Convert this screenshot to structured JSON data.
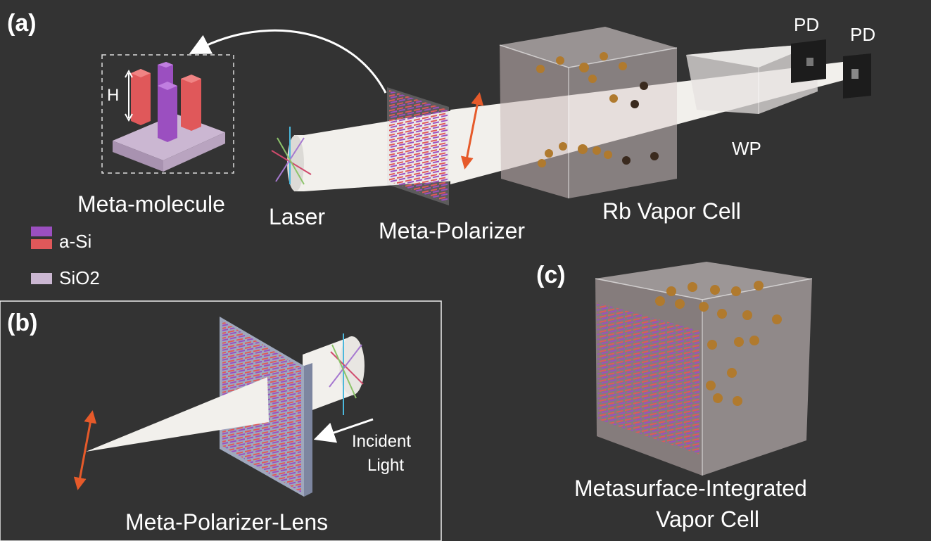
{
  "panels": {
    "a": "(a)",
    "b": "(b)",
    "c": "(c)"
  },
  "labels": {
    "meta_molecule": "Meta-molecule",
    "height_marker": "H",
    "laser": "Laser",
    "meta_polarizer": "Meta-Polarizer",
    "rb_vapor_cell": "Rb Vapor Cell",
    "waveplate": "WP",
    "photodetector_1": "PD",
    "photodetector_2": "PD",
    "meta_polarizer_lens": "Meta-Polarizer-Lens",
    "incident_light_line1": "Incident",
    "incident_light_line2": "Light",
    "integrated_cell_line1": "Metasurface-Integrated",
    "integrated_cell_line2": "Vapor Cell"
  },
  "legend": [
    {
      "label": "a-Si",
      "colors": [
        "#9b4fc0",
        "#e0585a"
      ]
    },
    {
      "label": "SiO2",
      "colors": [
        "#cbb7d2"
      ]
    }
  ],
  "colors": {
    "background": "#333333",
    "beam": "#f2f0ec",
    "pillar_purple": "#9b4fc0",
    "pillar_red": "#e0585a",
    "substrate": "#cbb7d2",
    "polarization_arrow": "#e65a2a",
    "rb_atom": "#b07a2e"
  }
}
